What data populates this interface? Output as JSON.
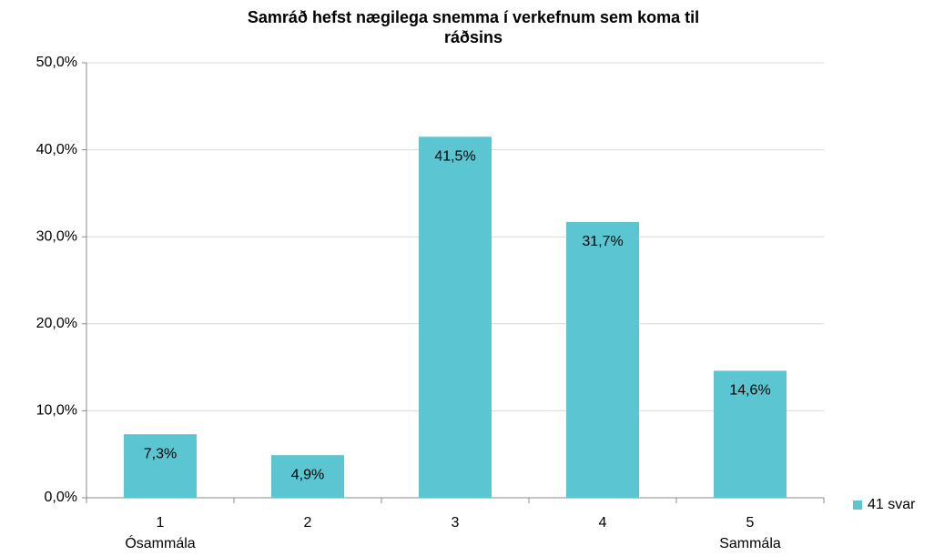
{
  "chart_data": {
    "type": "bar",
    "title": [
      "Samráð hefst nægilega snemma í verkefnum sem koma til",
      "ráðsins"
    ],
    "categories": [
      [
        "1",
        "Ósammála"
      ],
      [
        "2"
      ],
      [
        "3"
      ],
      [
        "4"
      ],
      [
        "5",
        "Sammála"
      ]
    ],
    "series": [
      {
        "name": "41 svar",
        "color": "#5bc5d1",
        "values": [
          7.3,
          4.9,
          41.5,
          31.7,
          14.6
        ],
        "value_labels": [
          "7,3%",
          "4,9%",
          "41,5%",
          "31,7%",
          "14,6%"
        ]
      }
    ],
    "ylim": [
      0,
      50
    ],
    "yticks": [
      {
        "value": 0,
        "label": "0,0%"
      },
      {
        "value": 10,
        "label": "10,0%"
      },
      {
        "value": 20,
        "label": "20,0%"
      },
      {
        "value": 30,
        "label": "30,0%"
      },
      {
        "value": 40,
        "label": "40,0%"
      },
      {
        "value": 50,
        "label": "50,0%"
      }
    ],
    "grid": true,
    "legend": "right"
  }
}
